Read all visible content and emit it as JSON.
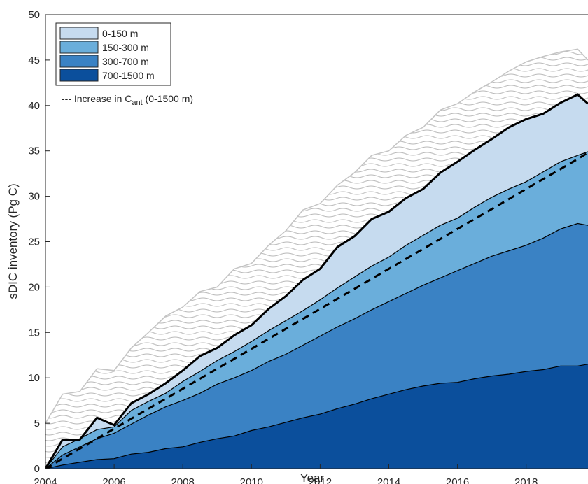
{
  "chart_data": {
    "type": "area",
    "title": "",
    "xlabel": "Year",
    "ylabel": "sDIC inventory (Pg C)",
    "xlim": [
      2004,
      2019.8
    ],
    "ylim": [
      0,
      50
    ],
    "xticks": [
      2004,
      2006,
      2008,
      2010,
      2012,
      2014,
      2016,
      2018
    ],
    "yticks": [
      0,
      5,
      10,
      15,
      20,
      25,
      30,
      35,
      40,
      45,
      50
    ],
    "grid": false,
    "legend_position": "top-left",
    "x": [
      2004.0,
      2004.5,
      2005.0,
      2005.5,
      2006.0,
      2006.5,
      2007.0,
      2007.5,
      2008.0,
      2008.5,
      2009.0,
      2009.5,
      2010.0,
      2010.5,
      2011.0,
      2011.5,
      2012.0,
      2012.5,
      2013.0,
      2013.5,
      2014.0,
      2014.5,
      2015.0,
      2015.5,
      2016.0,
      2016.5,
      2017.0,
      2017.5,
      2018.0,
      2018.5,
      2019.0,
      2019.5,
      2019.8
    ],
    "series": [
      {
        "name": "700-1500 m",
        "color": "#0b4f9c",
        "values": [
          0.0,
          0.4,
          0.7,
          1.0,
          1.1,
          1.6,
          1.8,
          2.2,
          2.4,
          2.9,
          3.3,
          3.6,
          4.2,
          4.6,
          5.1,
          5.6,
          6.0,
          6.6,
          7.1,
          7.7,
          8.2,
          8.7,
          9.1,
          9.4,
          9.5,
          9.9,
          10.2,
          10.4,
          10.7,
          10.9,
          11.3,
          11.3,
          11.5
        ]
      },
      {
        "name": "300-700 m",
        "color": "#3a82c4",
        "values": [
          0.0,
          1.5,
          2.4,
          3.3,
          3.9,
          4.9,
          5.9,
          6.8,
          7.5,
          8.3,
          9.3,
          10.0,
          10.8,
          11.8,
          12.6,
          13.6,
          14.6,
          15.6,
          16.5,
          17.5,
          18.4,
          19.3,
          20.2,
          21.0,
          21.8,
          22.6,
          23.4,
          24.0,
          24.6,
          25.4,
          26.4,
          27.0,
          26.8
        ]
      },
      {
        "name": "150-300 m",
        "color": "#6aaedb",
        "values": [
          0.0,
          2.4,
          3.3,
          4.3,
          4.6,
          6.4,
          7.4,
          8.3,
          9.6,
          10.7,
          11.9,
          12.9,
          14.0,
          15.2,
          16.3,
          17.4,
          18.6,
          19.9,
          21.1,
          22.3,
          23.3,
          24.6,
          25.7,
          26.8,
          27.6,
          28.8,
          29.9,
          30.8,
          31.6,
          32.7,
          33.8,
          34.5,
          34.9
        ]
      },
      {
        "name": "0-150 m",
        "color": "#c6dbef",
        "values": [
          0.0,
          3.2,
          3.2,
          5.6,
          4.8,
          7.2,
          8.2,
          9.4,
          10.8,
          12.4,
          13.3,
          14.7,
          15.8,
          17.6,
          19.0,
          20.8,
          22.0,
          24.4,
          25.6,
          27.5,
          28.3,
          29.8,
          30.8,
          32.6,
          33.8,
          35.1,
          36.3,
          37.6,
          38.5,
          39.1,
          40.3,
          41.2,
          40.2
        ]
      },
      {
        "name": "Increase in C_ant (0-1500 m)",
        "color": "#000000",
        "style": "dashed",
        "values": [
          0.0,
          1.1,
          2.2,
          3.3,
          4.4,
          5.5,
          6.6,
          7.7,
          8.8,
          9.9,
          11.0,
          12.1,
          13.2,
          14.3,
          15.4,
          16.5,
          17.6,
          18.7,
          19.8,
          20.9,
          22.0,
          23.1,
          24.2,
          25.3,
          26.4,
          27.5,
          28.6,
          29.7,
          30.8,
          31.9,
          33.0,
          34.1,
          34.8
        ]
      }
    ],
    "uncertainty_envelope": {
      "color": "#bdbdbd",
      "upper": [
        5.0,
        8.2,
        8.5,
        11.0,
        10.8,
        13.3,
        15.0,
        16.8,
        17.8,
        19.5,
        20.0,
        22.0,
        22.6,
        24.6,
        26.2,
        28.5,
        29.2,
        31.2,
        32.6,
        34.5,
        35.0,
        36.7,
        37.6,
        39.5,
        40.2,
        41.5,
        42.6,
        43.8,
        44.8,
        45.4,
        45.9,
        46.2,
        45.0
      ],
      "lower": [
        0.0,
        0.0,
        0.0,
        0.8,
        0.4,
        2.6,
        4.6,
        6.0,
        7.4,
        9.0,
        10.3,
        11.6,
        12.7,
        14.4,
        15.8,
        17.4,
        18.4,
        20.4,
        21.8,
        23.6,
        24.2,
        26.0,
        27.4,
        29.0,
        30.2,
        31.6,
        32.8,
        34.2,
        34.8,
        35.3,
        35.8,
        36.1,
        35.0
      ]
    },
    "legend": {
      "entries": [
        "0-150 m",
        "150-300 m",
        "300-700 m",
        "700-1500 m"
      ],
      "line_entry": {
        "text": "--- Increase in C",
        "subscript": "ant",
        "suffix": " (0-1500 m)"
      }
    }
  }
}
